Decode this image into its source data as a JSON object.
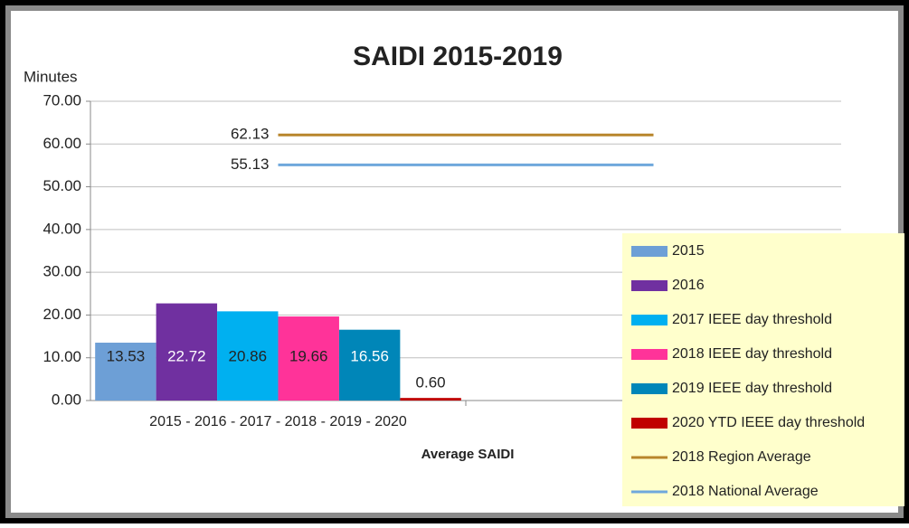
{
  "chart_data": {
    "type": "bar",
    "title": "SAIDI 2015-2019",
    "y_label": "Minutes",
    "x_label": "Average SAIDI",
    "categories": [
      "2015 - 2016 - 2017 - 2018 - 2019 - 2020",
      null
    ],
    "series": [
      {
        "name": "2015",
        "color": "#6d9fd6",
        "values": [
          13.53,
          null
        ]
      },
      {
        "name": "2016",
        "color": "#7030a0",
        "values": [
          22.72,
          null
        ]
      },
      {
        "name": "2017 IEEE day threshold",
        "color": "#00b0f0",
        "values": [
          20.86,
          null
        ]
      },
      {
        "name": "2018 IEEE day threshold",
        "color": "#ff3399",
        "values": [
          19.66,
          null
        ]
      },
      {
        "name": "2019 IEEE day threshold",
        "color": "#0086b8",
        "values": [
          16.56,
          null
        ]
      },
      {
        "name": "2020 YTD IEEE day threshold",
        "color": "#c00000",
        "values": [
          0.6,
          null
        ],
        "value_labels": [
          "0.60",
          null
        ]
      },
      {
        "name": "2018 Region Average",
        "type": "line",
        "color": "#b8862b",
        "values": [
          62.13,
          62.13
        ]
      },
      {
        "name": "2018 National Average",
        "type": "line",
        "color": "#6fa8dc",
        "values": [
          55.13,
          55.13
        ]
      }
    ],
    "ylim": [
      0,
      70
    ],
    "yticks": [
      {
        "value": 0,
        "label": "0.00"
      },
      {
        "value": 10,
        "label": "10.00"
      },
      {
        "value": 20,
        "label": "20.00"
      },
      {
        "value": 30,
        "label": "30.00"
      },
      {
        "value": 40,
        "label": "40.00"
      },
      {
        "value": 50,
        "label": "50.00"
      },
      {
        "value": 60,
        "label": "60.00"
      },
      {
        "value": 70,
        "label": "70.00"
      }
    ],
    "grid": true,
    "legend": "right"
  }
}
